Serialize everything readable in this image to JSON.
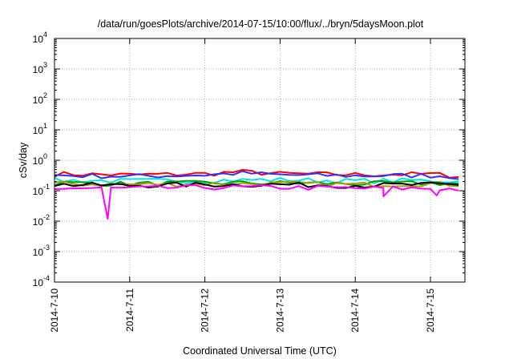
{
  "chart_data": {
    "type": "line",
    "title": "/data/run/goesPlots/archive/2014-07-15/10:00/flux/../bryn/5daysMoon.plot",
    "xlabel": "Coordinated Universal Time (UTC)",
    "ylabel": "cSv/day",
    "yscale": "log",
    "ylim": [
      0.0001,
      10000
    ],
    "xlim": [
      "2014-07-10 00:00",
      "2014-07-15 11:00"
    ],
    "grid": true,
    "legend": "none",
    "x_ticks": [
      "2014-7-10",
      "2014-7-11",
      "2014-7-12",
      "2014-7-13",
      "2014-7-14",
      "2014-7-15"
    ],
    "y_ticks": [
      {
        "value": 0.0001,
        "base": "10",
        "exp": "-4"
      },
      {
        "value": 0.001,
        "base": "10",
        "exp": "-3"
      },
      {
        "value": 0.01,
        "base": "10",
        "exp": "-2"
      },
      {
        "value": 0.1,
        "base": "10",
        "exp": "-1"
      },
      {
        "value": 1,
        "base": "10",
        "exp": "0"
      },
      {
        "value": 10,
        "base": "10",
        "exp": "1"
      },
      {
        "value": 100,
        "base": "10",
        "exp": "2"
      },
      {
        "value": 1000,
        "base": "10",
        "exp": "3"
      },
      {
        "value": 10000,
        "base": "10",
        "exp": "4"
      }
    ],
    "series": [
      {
        "color": "#ff0000",
        "level": 0.36,
        "points": [
          [
            "2014-07-10",
            0.36
          ],
          [
            "2014-07-11",
            0.33
          ],
          [
            "2014-07-12",
            0.36
          ],
          [
            "2014-07-12 12:00",
            0.42
          ],
          [
            "2014-07-13",
            0.36
          ],
          [
            "2014-07-14",
            0.34
          ],
          [
            "2014-07-15",
            0.35
          ],
          [
            "2014-07-15 11:00",
            0.3
          ]
        ]
      },
      {
        "color": "#3030ff",
        "level": 0.32,
        "points": [
          [
            "2014-07-10",
            0.32
          ],
          [
            "2014-07-11",
            0.3
          ],
          [
            "2014-07-12",
            0.33
          ],
          [
            "2014-07-12 12:00",
            0.38
          ],
          [
            "2014-07-13",
            0.33
          ],
          [
            "2014-07-14",
            0.31
          ],
          [
            "2014-07-15",
            0.32
          ],
          [
            "2014-07-15 11:00",
            0.28
          ]
        ]
      },
      {
        "color": "#00e5e5",
        "level": 0.22,
        "points": [
          [
            "2014-07-10",
            0.22
          ],
          [
            "2014-07-11",
            0.21
          ],
          [
            "2014-07-12",
            0.22
          ],
          [
            "2014-07-13",
            0.23
          ],
          [
            "2014-07-14",
            0.21
          ],
          [
            "2014-07-15",
            0.22
          ],
          [
            "2014-07-15 11:00",
            0.2
          ]
        ]
      },
      {
        "color": "#00a000",
        "level": 0.18,
        "points": [
          [
            "2014-07-10",
            0.18
          ],
          [
            "2014-07-11",
            0.17
          ],
          [
            "2014-07-12",
            0.18
          ],
          [
            "2014-07-13",
            0.18
          ],
          [
            "2014-07-14",
            0.17
          ],
          [
            "2014-07-15",
            0.18
          ],
          [
            "2014-07-15 11:00",
            0.17
          ]
        ]
      },
      {
        "color": "#a0a000",
        "level": 0.17,
        "points": [
          [
            "2014-07-10",
            0.17
          ],
          [
            "2014-07-11",
            0.16
          ],
          [
            "2014-07-12",
            0.17
          ],
          [
            "2014-07-13",
            0.17
          ],
          [
            "2014-07-14",
            0.16
          ],
          [
            "2014-07-15",
            0.17
          ],
          [
            "2014-07-15 11:00",
            0.16
          ]
        ]
      },
      {
        "color": "#000000",
        "level": 0.16,
        "points": [
          [
            "2014-07-10",
            0.16
          ],
          [
            "2014-07-11",
            0.15
          ],
          [
            "2014-07-12",
            0.16
          ],
          [
            "2014-07-13",
            0.16
          ],
          [
            "2014-07-14",
            0.15
          ],
          [
            "2014-07-15",
            0.16
          ],
          [
            "2014-07-15 11:00",
            0.15
          ]
        ]
      },
      {
        "color": "#ff00ff",
        "level": 0.12,
        "points": [
          [
            "2014-07-10",
            0.12
          ],
          [
            "2014-07-10 17:00",
            0.012
          ],
          [
            "2014-07-11",
            0.12
          ],
          [
            "2014-07-12",
            0.13
          ],
          [
            "2014-07-13",
            0.13
          ],
          [
            "2014-07-14",
            0.12
          ],
          [
            "2014-07-14 09:00",
            0.065
          ],
          [
            "2014-07-15",
            0.12
          ],
          [
            "2014-07-15 02:00",
            0.07
          ],
          [
            "2014-07-15 11:00",
            0.11
          ]
        ]
      }
    ]
  }
}
